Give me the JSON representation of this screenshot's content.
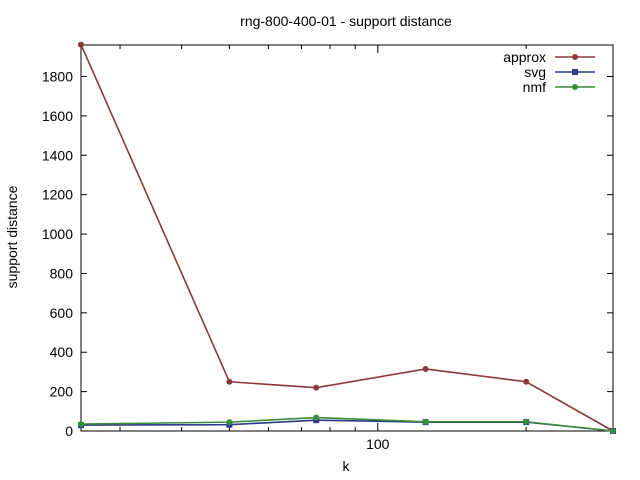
{
  "chart_data": {
    "type": "line",
    "title": "rng-800-400-01 - support distance",
    "xlabel": "k",
    "ylabel": "support distance",
    "x_scale": "log",
    "x": [
      25,
      50,
      75,
      125,
      200,
      300
    ],
    "x_tick_labels": [
      {
        "value": 100,
        "label": "100"
      }
    ],
    "ylim": [
      0,
      1960
    ],
    "y_ticks": [
      0,
      200,
      400,
      600,
      800,
      1000,
      1200,
      1400,
      1600,
      1800
    ],
    "grid": false,
    "legend_position": "top-right",
    "series": [
      {
        "name": "approx",
        "color": "#8b3a3a",
        "marker": "circle",
        "values": [
          1962,
          250,
          220,
          315,
          250,
          0
        ]
      },
      {
        "name": "svg",
        "color": "#2e3a8c",
        "marker": "square",
        "values": [
          30,
          32,
          55,
          45,
          45,
          0
        ]
      },
      {
        "name": "nmf",
        "color": "#3a8c3a",
        "marker": "circle",
        "values": [
          35,
          45,
          68,
          47,
          47,
          0
        ]
      }
    ]
  }
}
